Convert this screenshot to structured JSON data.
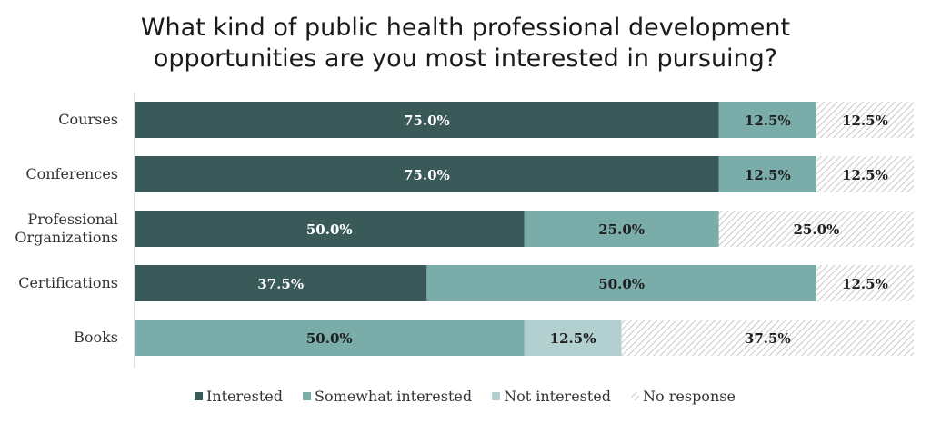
{
  "chart_data": {
    "type": "bar",
    "orientation": "horizontal",
    "stacked": true,
    "title_lines": [
      "What kind of public health professional development",
      "opportunities are you most interested in pursuing?"
    ],
    "categories": [
      [
        "Courses"
      ],
      [
        "Conferences"
      ],
      [
        "Professional",
        "Organizations"
      ],
      [
        "Certifications"
      ],
      [
        "Books"
      ]
    ],
    "series": [
      {
        "name": "Interested",
        "values": [
          75.0,
          75.0,
          50.0,
          37.5,
          0
        ],
        "labels": [
          "75.0%",
          "75.0%",
          "50.0%",
          "37.5%",
          ""
        ],
        "color": "#3a5a5a",
        "text_color": "#ffffff"
      },
      {
        "name": "Somewhat interested",
        "values": [
          12.5,
          12.5,
          25.0,
          50.0,
          50.0
        ],
        "labels": [
          "12.5%",
          "12.5%",
          "25.0%",
          "50.0%",
          "50.0%"
        ],
        "color": "#7aadaa",
        "text_color": "#1f1f1f"
      },
      {
        "name": "Not interested",
        "values": [
          0,
          0,
          0,
          0,
          12.5
        ],
        "labels": [
          "",
          "",
          "",
          "",
          "12.5%"
        ],
        "color": "#b3d0d0",
        "text_color": "#1f1f1f"
      },
      {
        "name": "No response",
        "values": [
          12.5,
          12.5,
          25.0,
          12.5,
          37.5
        ],
        "labels": [
          "12.5%",
          "12.5%",
          "25.0%",
          "12.5%",
          "37.5%"
        ],
        "color": "hatch",
        "text_color": "#1f1f1f"
      }
    ],
    "xlim": [
      0,
      100
    ],
    "grid": false,
    "legend_position": "bottom"
  }
}
